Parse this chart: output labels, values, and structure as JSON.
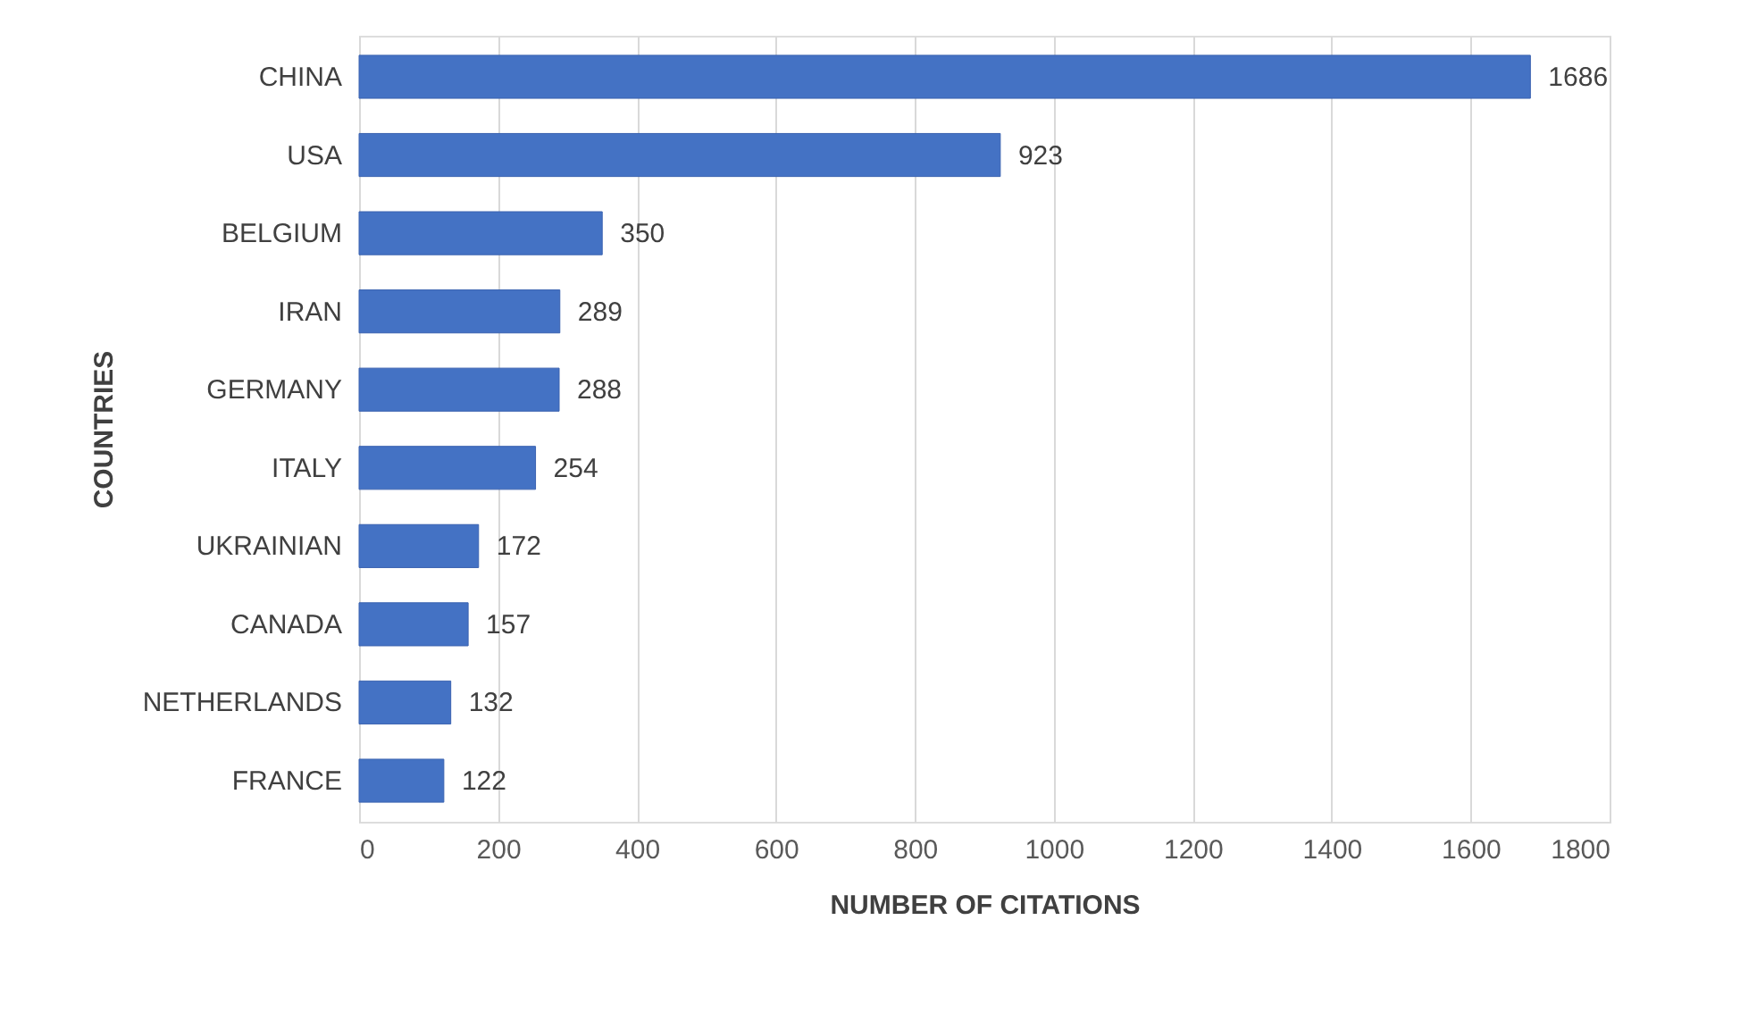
{
  "chart_data": {
    "type": "bar",
    "orientation": "horizontal",
    "xlabel": "NUMBER OF CITATIONS",
    "ylabel": "COUNTRIES",
    "categories": [
      "CHINA",
      "USA",
      "BELGIUM",
      "IRAN",
      "GERMANY",
      "ITALY",
      "UKRAINIAN",
      "CANADA",
      "NETHERLANDS",
      "FRANCE"
    ],
    "values": [
      1686,
      923,
      350,
      289,
      288,
      254,
      172,
      157,
      132,
      122
    ],
    "color": "#4472c4",
    "xlim": [
      0,
      1800
    ],
    "xticks": [
      0,
      200,
      400,
      600,
      800,
      1000,
      1200,
      1400,
      1600,
      1800
    ],
    "grid": "x",
    "data_labels": true
  }
}
